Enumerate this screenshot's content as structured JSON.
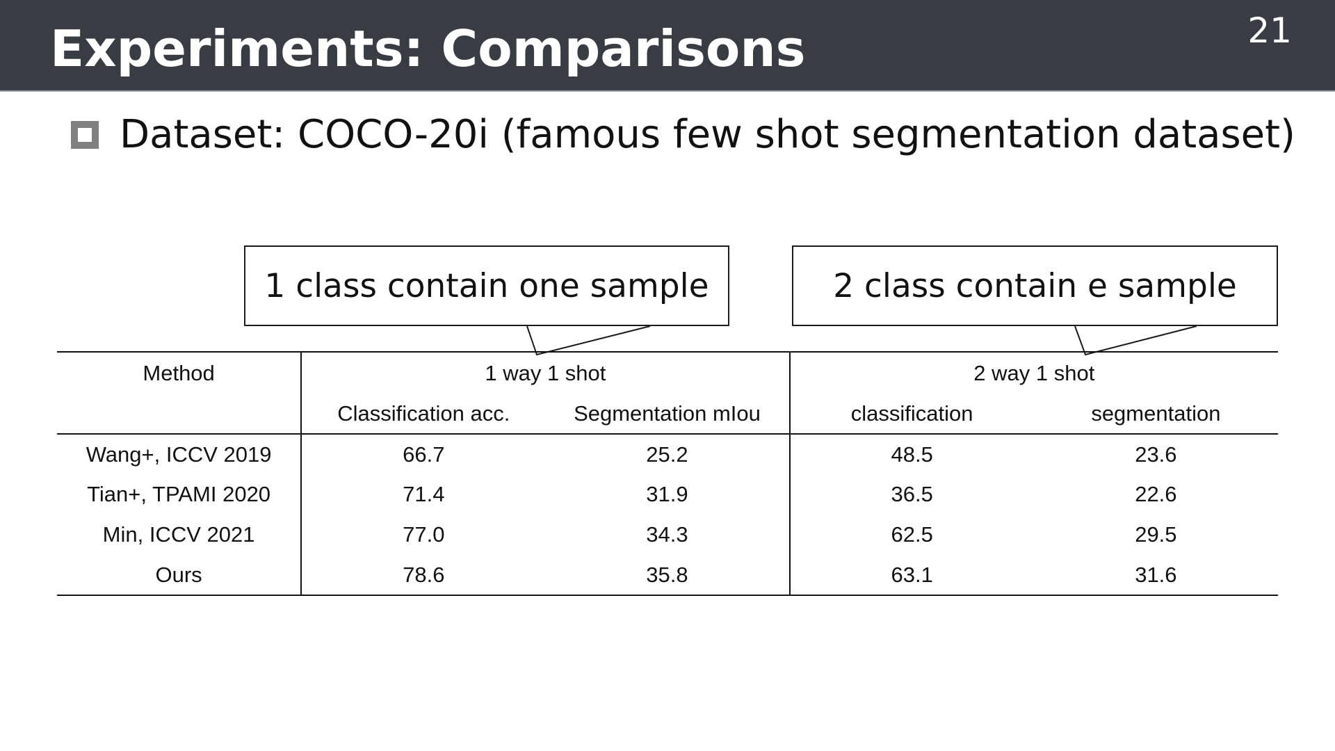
{
  "slide": {
    "title": "Experiments: Comparisons",
    "page_number": "21",
    "bullet": "Dataset: COCO-20i (famous few shot segmentation dataset)"
  },
  "callouts": [
    {
      "text": "1 class contain one sample"
    },
    {
      "text": "2 class contain e sample"
    }
  ],
  "table": {
    "method_header": "Method",
    "groups": [
      "1 way 1 shot",
      "2 way 1 shot"
    ],
    "subheaders": [
      "Classification acc.",
      "Segmentation mIou",
      "classification",
      "segmentation"
    ],
    "rows": [
      {
        "method": "Wang+, ICCV 2019",
        "values": [
          "66.7",
          "25.2",
          "48.5",
          "23.6"
        ]
      },
      {
        "method": "Tian+, TPAMI 2020",
        "values": [
          "71.4",
          "31.9",
          "36.5",
          "22.6"
        ]
      },
      {
        "method": "Min, ICCV 2021",
        "values": [
          "77.0",
          "34.3",
          "62.5",
          "29.5"
        ]
      },
      {
        "method": "Ours",
        "values": [
          "78.6",
          "35.8",
          "63.1",
          "31.6"
        ],
        "bold": true
      }
    ]
  }
}
